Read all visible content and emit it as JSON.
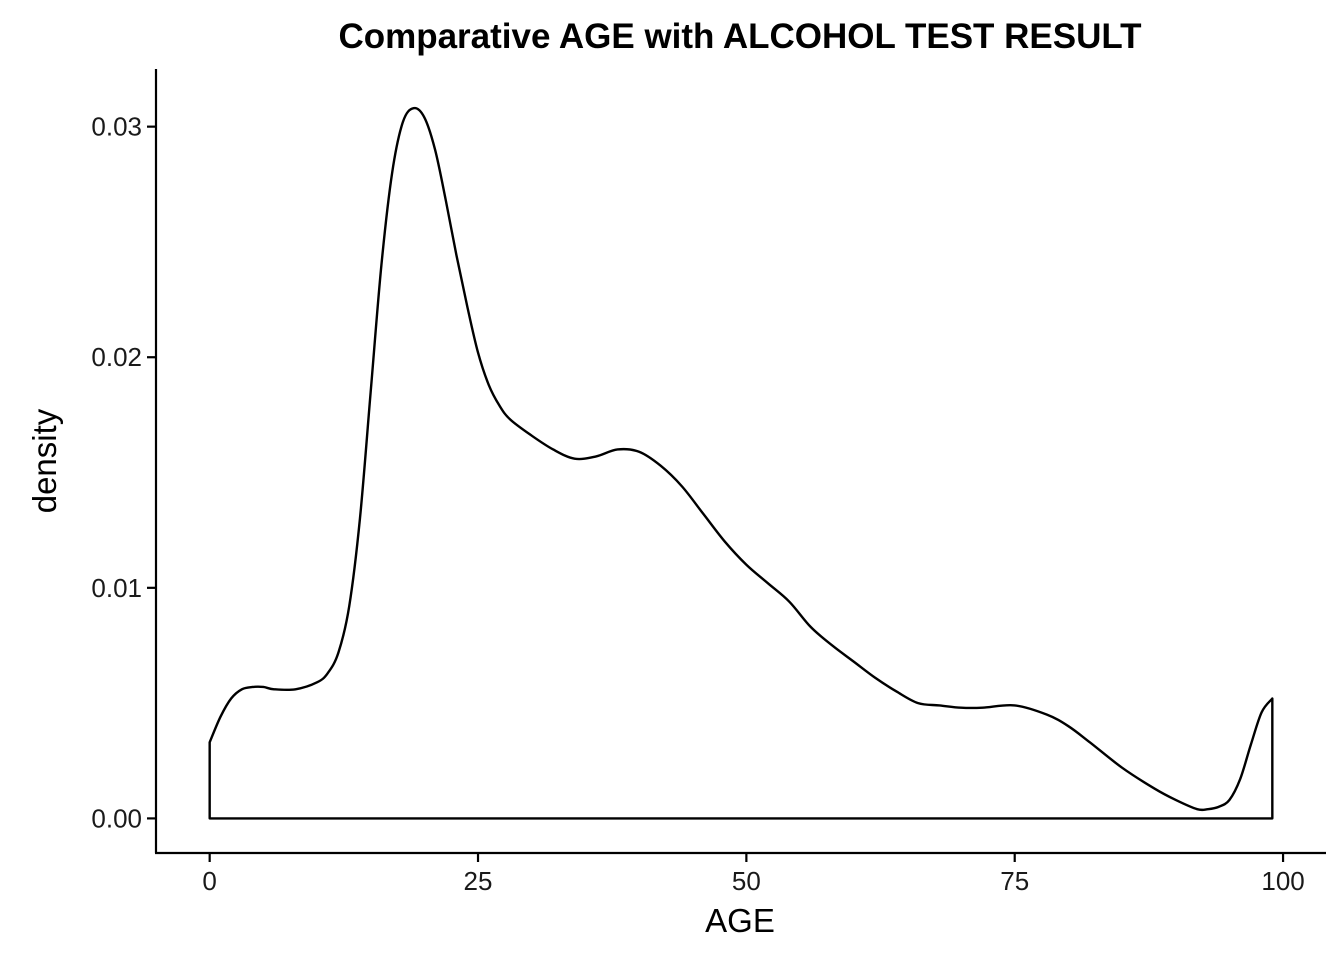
{
  "chart_data": {
    "type": "area",
    "title": "Comparative AGE with ALCOHOL TEST RESULT",
    "xlabel": "AGE",
    "ylabel": "density",
    "xlim": [
      -5,
      104
    ],
    "ylim": [
      -0.0015,
      0.0325
    ],
    "x_ticks": [
      0,
      25,
      50,
      75,
      100
    ],
    "x_tick_labels": [
      "0",
      "25",
      "50",
      "75",
      "100"
    ],
    "y_ticks": [
      0.0,
      0.01,
      0.02,
      0.03
    ],
    "y_tick_labels": [
      "0.00",
      "0.01",
      "0.02",
      "0.03"
    ],
    "grid": false,
    "legend": "none",
    "series": [
      {
        "x": [
          0,
          1,
          2,
          3,
          4,
          5,
          6,
          8,
          10,
          11,
          12,
          13,
          14,
          15,
          16,
          17,
          18,
          19,
          20,
          21,
          22,
          23,
          24,
          25,
          26,
          27,
          28,
          30,
          32,
          34,
          36,
          38,
          40,
          42,
          44,
          46,
          48,
          50,
          52,
          54,
          56,
          58,
          60,
          62,
          64,
          66,
          68,
          70,
          72,
          75,
          78,
          80,
          82,
          85,
          88,
          90,
          92,
          93,
          94,
          95,
          96,
          97,
          98,
          99
        ],
        "y": [
          0.0033,
          0.0044,
          0.0052,
          0.0056,
          0.0057,
          0.0057,
          0.0056,
          0.0056,
          0.0059,
          0.0063,
          0.0072,
          0.0092,
          0.013,
          0.0185,
          0.024,
          0.028,
          0.0302,
          0.0308,
          0.0304,
          0.029,
          0.0268,
          0.0244,
          0.0222,
          0.0202,
          0.0188,
          0.0179,
          0.0173,
          0.0166,
          0.016,
          0.0156,
          0.0157,
          0.016,
          0.0159,
          0.0153,
          0.0144,
          0.0132,
          0.012,
          0.011,
          0.0102,
          0.0094,
          0.0083,
          0.0075,
          0.0068,
          0.0061,
          0.0055,
          0.005,
          0.0049,
          0.0048,
          0.0048,
          0.0049,
          0.0045,
          0.004,
          0.0033,
          0.0022,
          0.0013,
          0.0008,
          0.0004,
          0.0004,
          0.0005,
          0.0008,
          0.0017,
          0.0032,
          0.0046,
          0.0052
        ]
      }
    ]
  }
}
